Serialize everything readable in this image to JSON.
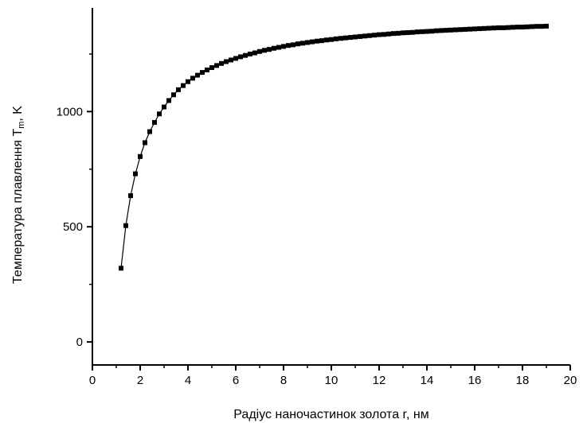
{
  "chart_data": {
    "type": "scatter",
    "title": "",
    "xlabel": "Радіус наночастинок золота r, нм",
    "ylabel_main": "Температура плавлення T",
    "ylabel_sub": "m",
    "ylabel_unit": ", K",
    "xlim": [
      0,
      20
    ],
    "ylim": [
      -100,
      1450
    ],
    "xticks": [
      0,
      2,
      4,
      6,
      8,
      10,
      12,
      14,
      16,
      18,
      20
    ],
    "yticks": [
      0,
      500,
      1000
    ],
    "grid": false,
    "legend": "none",
    "colors": {
      "series": "#000000",
      "axis": "#000000"
    },
    "series": [
      {
        "marker": "square",
        "connected": true,
        "x": [
          1.2,
          1.4,
          1.6,
          1.8,
          2.0,
          2.2,
          2.4,
          2.6,
          2.8,
          3.0,
          3.2,
          3.4,
          3.6,
          3.8,
          4.0,
          4.2,
          4.4,
          4.6,
          4.8,
          5.0,
          5.2,
          5.4,
          5.6,
          5.8,
          6.0,
          6.2,
          6.4,
          6.6,
          6.8,
          7.0,
          7.2,
          7.4,
          7.6,
          7.8,
          8.0,
          8.2,
          8.4,
          8.6,
          8.8,
          9.0,
          9.2,
          9.4,
          9.6,
          9.8,
          10.0,
          10.2,
          10.4,
          10.6,
          10.8,
          11.0,
          11.2,
          11.4,
          11.6,
          11.8,
          12.0,
          12.2,
          12.4,
          12.6,
          12.8,
          13.0,
          13.2,
          13.4,
          13.6,
          13.8,
          14.0,
          14.2,
          14.4,
          14.6,
          14.8,
          15.0,
          15.2,
          15.4,
          15.6,
          15.8,
          16.0,
          16.2,
          16.4,
          16.6,
          16.8,
          17.0,
          17.2,
          17.4,
          17.6,
          17.8,
          18.0,
          18.2,
          18.4,
          18.6,
          18.8,
          19.0
        ],
        "y": [
          320,
          505,
          635,
          730,
          805,
          865,
          913,
          953,
          990,
          1020,
          1048,
          1073,
          1095,
          1113,
          1130,
          1145,
          1158,
          1170,
          1181,
          1191,
          1200,
          1209,
          1217,
          1224,
          1231,
          1238,
          1244,
          1250,
          1255,
          1261,
          1266,
          1270,
          1275,
          1279,
          1283,
          1287,
          1290,
          1294,
          1297,
          1300,
          1303,
          1306,
          1308,
          1311,
          1313,
          1316,
          1318,
          1320,
          1322,
          1324,
          1326,
          1328,
          1330,
          1332,
          1334,
          1335,
          1337,
          1339,
          1340,
          1342,
          1343,
          1344,
          1346,
          1347,
          1348,
          1349,
          1351,
          1352,
          1353,
          1354,
          1355,
          1356,
          1357,
          1358,
          1359,
          1360,
          1361,
          1362,
          1363,
          1364,
          1364,
          1365,
          1366,
          1367,
          1367,
          1368,
          1369,
          1370,
          1370,
          1371
        ]
      }
    ]
  }
}
